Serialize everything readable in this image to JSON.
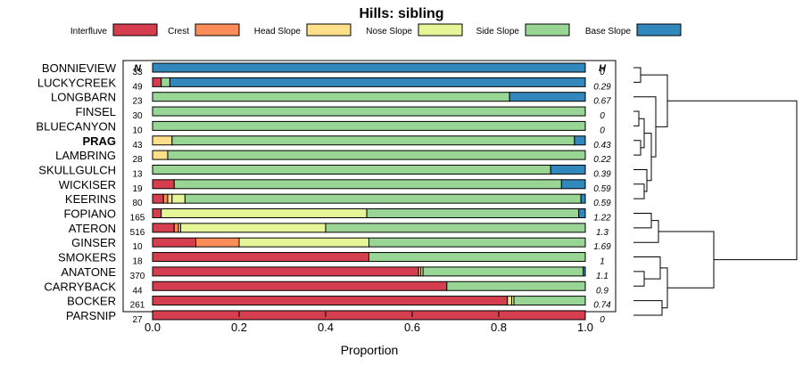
{
  "chart_data": {
    "type": "bar",
    "orientation": "horizontal-stacked",
    "title": "Hills: sibling",
    "xlabel": "Proportion",
    "ylabel": "",
    "xlim": [
      0,
      1
    ],
    "xticks": [
      "0.0",
      "0.2",
      "0.4",
      "0.6",
      "0.8",
      "1.0"
    ],
    "xtick_values": [
      0,
      0.2,
      0.4,
      0.6,
      0.8,
      1.0
    ],
    "n_header": "N",
    "h_header": "H",
    "legend_position": "top",
    "legend": [
      {
        "name": "Interfluve",
        "color": "#d53e4f"
      },
      {
        "name": "Crest",
        "color": "#fc8d59"
      },
      {
        "name": "Head Slope",
        "color": "#fee08b"
      },
      {
        "name": "Nose Slope",
        "color": "#e6f598"
      },
      {
        "name": "Side Slope",
        "color": "#99d594"
      },
      {
        "name": "Base Slope",
        "color": "#3288bd"
      }
    ],
    "highlight": "PRAG",
    "categories": [
      "BONNIEVIEW",
      "LUCKYCREEK",
      "LONGBARN",
      "FINSEL",
      "BLUECANYON",
      "PRAG",
      "LAMBRING",
      "SKULLGULCH",
      "WICKISER",
      "KEERINS",
      "FOPIANO",
      "ATERON",
      "GINSER",
      "SMOKERS",
      "ANATONE",
      "CARRYBACK",
      "BOCKER",
      "PARSNIP"
    ],
    "n": [
      "33",
      "49",
      "23",
      "30",
      "10",
      "43",
      "28",
      "13",
      "19",
      "80",
      "165",
      "516",
      "10",
      "18",
      "370",
      "44",
      "261",
      "27"
    ],
    "h": [
      "0",
      "0.29",
      "0.67",
      "0",
      "0",
      "0.43",
      "0.22",
      "0.39",
      "0.59",
      "0.59",
      "1.22",
      "1.3",
      "1.69",
      "1",
      "1.1",
      "0.9",
      "0.74",
      "0"
    ],
    "series": [
      {
        "name": "Interfluve",
        "values": [
          0,
          0.02,
          0,
          0,
          0,
          0,
          0,
          0,
          0.05,
          0.025,
          0.02,
          0.05,
          0.1,
          0.5,
          0.615,
          0.68,
          0.82,
          1.0
        ]
      },
      {
        "name": "Crest",
        "values": [
          0,
          0,
          0,
          0,
          0,
          0,
          0,
          0,
          0,
          0.01,
          0,
          0.01,
          0.1,
          0,
          0,
          0,
          0,
          0
        ]
      },
      {
        "name": "Head Slope",
        "values": [
          0,
          0,
          0,
          0,
          0,
          0.045,
          0.035,
          0,
          0,
          0.01,
          0,
          0.005,
          0,
          0,
          0.005,
          0,
          0.01,
          0
        ]
      },
      {
        "name": "Nose Slope",
        "values": [
          0,
          0,
          0,
          0,
          0,
          0,
          0,
          0,
          0,
          0.03,
          0.475,
          0.335,
          0.3,
          0,
          0.005,
          0,
          0.005,
          0
        ]
      },
      {
        "name": "Side Slope",
        "values": [
          0,
          0.02,
          0.825,
          1.0,
          1.0,
          0.93,
          0.965,
          0.92,
          0.895,
          0.915,
          0.49,
          0.6,
          0.5,
          0.5,
          0.37,
          0.32,
          0.165,
          0
        ]
      },
      {
        "name": "Base Slope",
        "values": [
          1.0,
          0.96,
          0.175,
          0,
          0,
          0.025,
          0,
          0.08,
          0.055,
          0.01,
          0.015,
          0,
          0,
          0,
          0.005,
          0,
          0,
          0
        ]
      }
    ],
    "dendrogram_groups": [
      [
        "BONNIEVIEW",
        "LUCKYCREEK"
      ],
      [
        "LONGBARN",
        "FINSEL",
        "BLUECANYON",
        "PRAG",
        "LAMBRING",
        "SKULLGULCH",
        "WICKISER",
        "KEERINS"
      ],
      [
        "FOPIANO",
        "ATERON",
        "GINSER"
      ],
      [
        "SMOKERS",
        "ANATONE",
        "CARRYBACK",
        "BOCKER",
        "PARSNIP"
      ]
    ]
  }
}
